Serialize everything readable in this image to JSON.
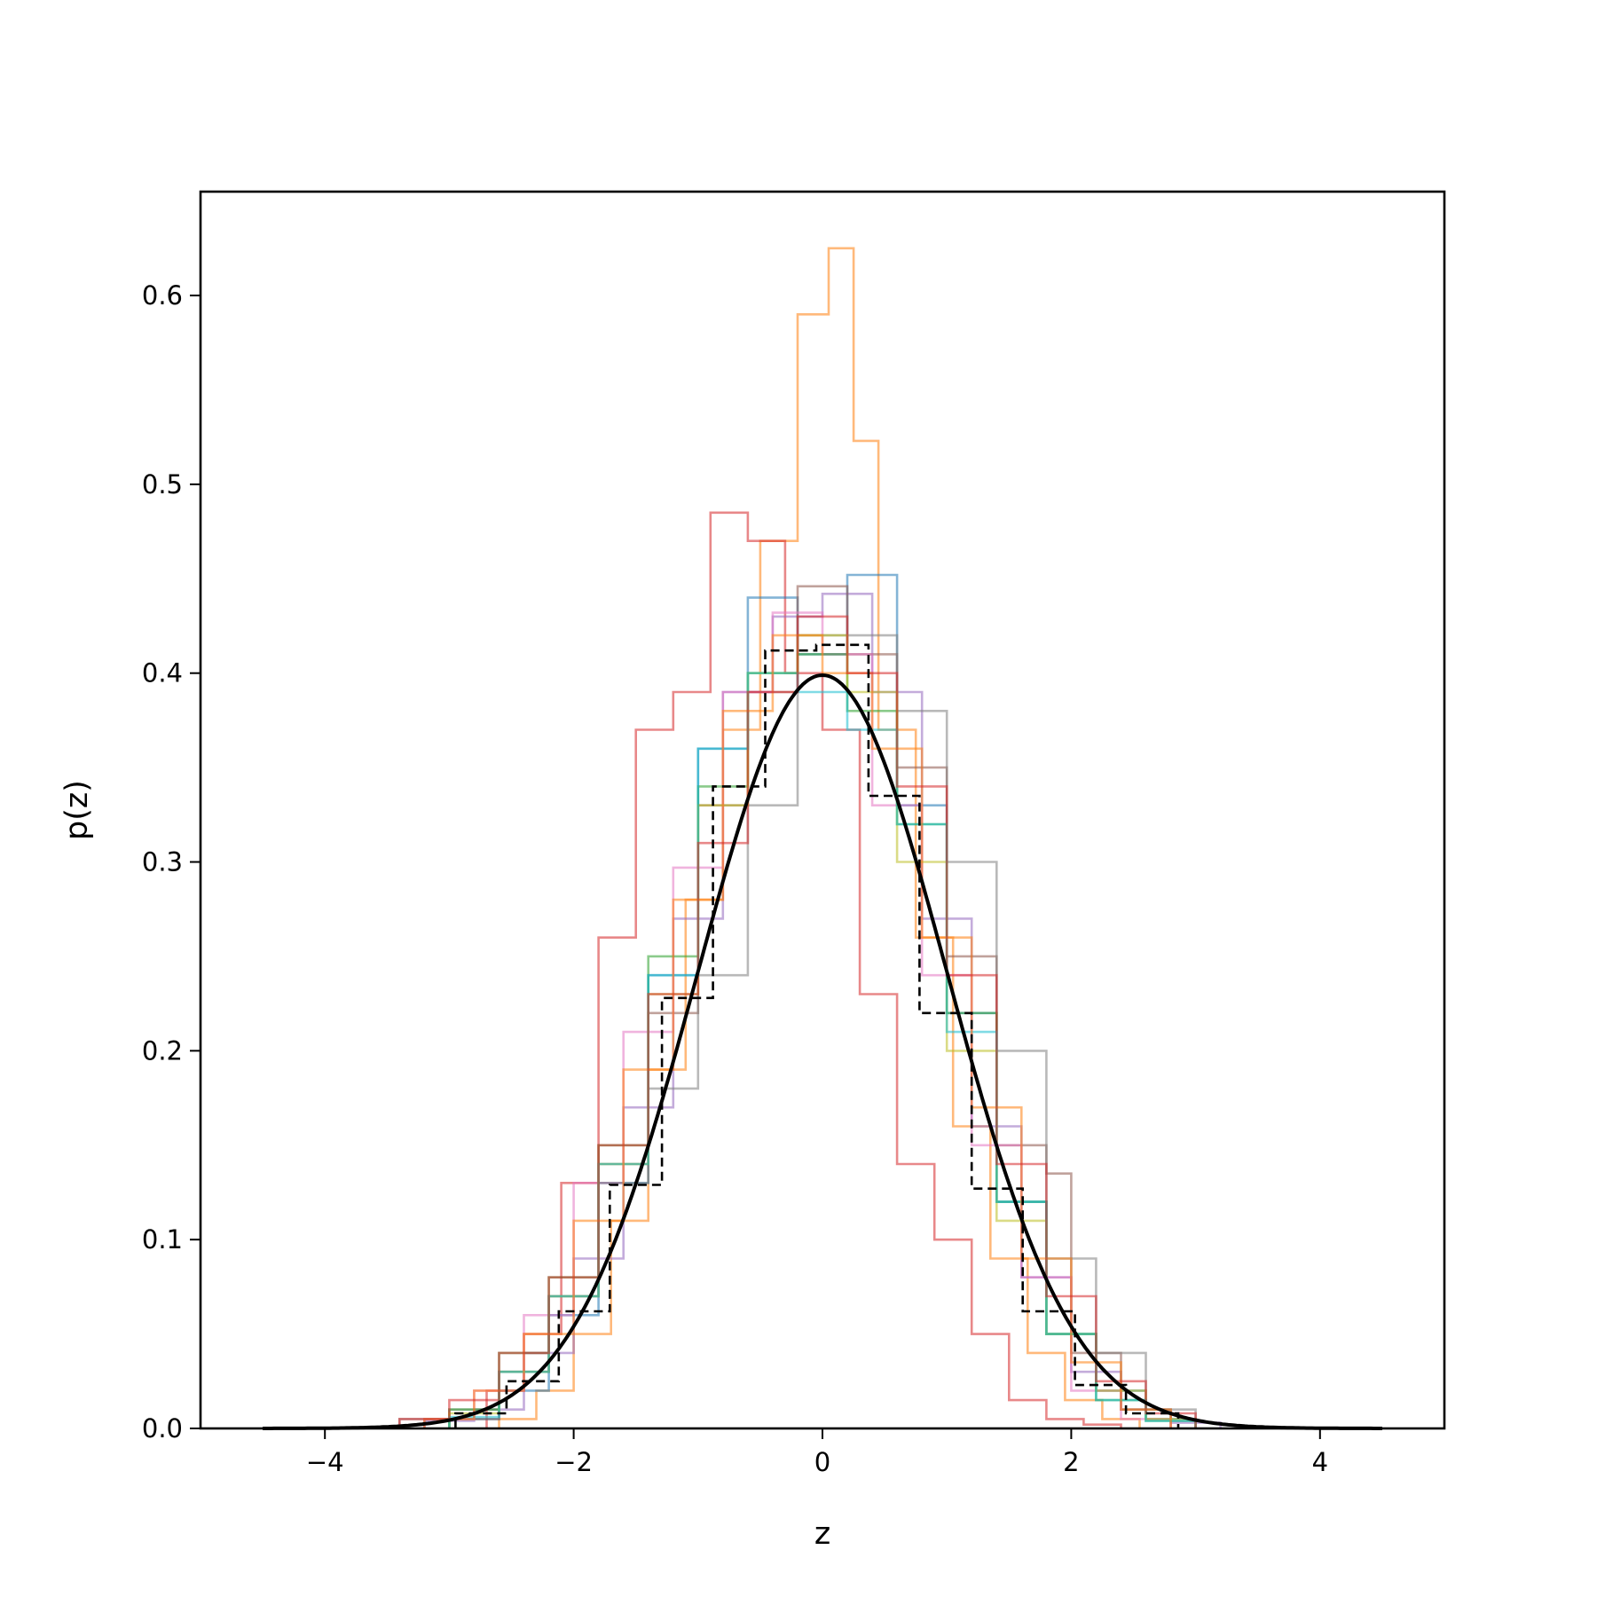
{
  "chart_data": {
    "type": "line",
    "title": "",
    "xlabel": "z",
    "ylabel": "p(z)",
    "xlim": [
      -5,
      5
    ],
    "ylim": [
      0,
      0.655
    ],
    "xticks": [
      -4,
      -2,
      0,
      2,
      4
    ],
    "xtick_labels": [
      "−4",
      "−2",
      "0",
      "2",
      "4"
    ],
    "yticks": [
      0.0,
      0.1,
      0.2,
      0.3,
      0.4,
      0.5,
      0.6
    ],
    "ytick_labels": [
      "0.0",
      "0.1",
      "0.2",
      "0.3",
      "0.4",
      "0.5",
      "0.6"
    ],
    "grid": false,
    "legend": "none",
    "reference_histogram": {
      "style": "dashed",
      "color": "#000000",
      "bin_edges": [
        -2.95,
        -2.54,
        -2.12,
        -1.71,
        -1.29,
        -0.88,
        -0.46,
        -0.05,
        0.37,
        0.78,
        1.2,
        1.61,
        2.03,
        2.44,
        2.86
      ],
      "values": [
        0.008,
        0.025,
        0.062,
        0.129,
        0.228,
        0.34,
        0.412,
        0.415,
        0.335,
        0.22,
        0.127,
        0.062,
        0.023,
        0.008
      ]
    },
    "gaussian_curve": {
      "color": "#000000",
      "mean": 0,
      "std": 1,
      "x_range": [
        -4.5,
        4.5
      ],
      "peak": 0.399
    },
    "histogram_series": [
      {
        "color": "#ff7f0e",
        "bin_edges": [
          -2.6,
          -2.3,
          -2.0,
          -1.7,
          -1.4,
          -1.1,
          -0.8,
          -0.5,
          -0.2,
          0.05,
          0.25,
          0.45,
          0.75,
          1.05,
          1.35,
          1.65,
          1.95,
          2.25,
          2.55
        ],
        "values": [
          0.005,
          0.02,
          0.05,
          0.11,
          0.19,
          0.28,
          0.37,
          0.47,
          0.59,
          0.625,
          0.523,
          0.37,
          0.26,
          0.16,
          0.09,
          0.04,
          0.015,
          0.005
        ]
      },
      {
        "color": "#d62728",
        "bin_edges": [
          -2.7,
          -2.4,
          -2.1,
          -1.8,
          -1.5,
          -1.2,
          -0.9,
          -0.6,
          -0.3,
          0.0,
          0.3,
          0.6,
          0.9,
          1.2,
          1.5,
          1.8,
          2.1,
          2.4
        ],
        "values": [
          0.02,
          0.05,
          0.13,
          0.26,
          0.37,
          0.39,
          0.485,
          0.47,
          0.4,
          0.37,
          0.23,
          0.14,
          0.1,
          0.05,
          0.015,
          0.005,
          0.002
        ]
      },
      {
        "color": "#1f77b4",
        "bin_edges": [
          -3.0,
          -2.6,
          -2.2,
          -1.8,
          -1.4,
          -1.0,
          -0.6,
          -0.2,
          0.2,
          0.6,
          1.0,
          1.4,
          1.8,
          2.2,
          2.6,
          3.0
        ],
        "values": [
          0.005,
          0.02,
          0.06,
          0.13,
          0.24,
          0.36,
          0.44,
          0.41,
          0.452,
          0.33,
          0.22,
          0.12,
          0.05,
          0.02,
          0.005
        ]
      },
      {
        "color": "#9467bd",
        "bin_edges": [
          -3.2,
          -2.8,
          -2.4,
          -2.0,
          -1.6,
          -1.2,
          -0.8,
          -0.4,
          0.0,
          0.4,
          0.8,
          1.2,
          1.6,
          2.0,
          2.4,
          2.8,
          3.2
        ],
        "values": [
          0.004,
          0.01,
          0.04,
          0.09,
          0.17,
          0.27,
          0.39,
          0.43,
          0.442,
          0.39,
          0.27,
          0.16,
          0.08,
          0.03,
          0.01,
          0.003
        ]
      },
      {
        "color": "#8c564b",
        "bin_edges": [
          -3.0,
          -2.6,
          -2.2,
          -1.8,
          -1.4,
          -1.0,
          -0.6,
          -0.2,
          0.2,
          0.6,
          1.0,
          1.4,
          1.8,
          2.0,
          2.4,
          2.8
        ],
        "values": [
          0.005,
          0.03,
          0.07,
          0.14,
          0.22,
          0.33,
          0.39,
          0.446,
          0.41,
          0.35,
          0.25,
          0.15,
          0.135,
          0.04,
          0.01
        ]
      },
      {
        "color": "#e377c2",
        "bin_edges": [
          -3.2,
          -2.8,
          -2.4,
          -2.0,
          -1.6,
          -1.2,
          -0.8,
          -0.4,
          0.0,
          0.4,
          0.8,
          1.2,
          1.6,
          2.0,
          2.4,
          2.8
        ],
        "values": [
          0.005,
          0.02,
          0.06,
          0.13,
          0.21,
          0.297,
          0.39,
          0.432,
          0.41,
          0.33,
          0.24,
          0.15,
          0.08,
          0.02,
          0.005
        ]
      },
      {
        "color": "#7f7f7f",
        "bin_edges": [
          -3.4,
          -3.0,
          -2.6,
          -2.2,
          -1.8,
          -1.4,
          -1.0,
          -0.6,
          -0.2,
          0.2,
          0.6,
          1.0,
          1.4,
          1.8,
          2.2,
          2.6,
          3.0
        ],
        "values": [
          0.005,
          0.01,
          0.03,
          0.07,
          0.13,
          0.18,
          0.24,
          0.33,
          0.42,
          0.42,
          0.38,
          0.3,
          0.2,
          0.09,
          0.04,
          0.01
        ]
      },
      {
        "color": "#2ca02c",
        "bin_edges": [
          -3.0,
          -2.6,
          -2.2,
          -1.8,
          -1.4,
          -1.0,
          -0.6,
          -0.2,
          0.2,
          0.6,
          1.0,
          1.4,
          1.8,
          2.2,
          2.6,
          3.0
        ],
        "values": [
          0.01,
          0.04,
          0.08,
          0.15,
          0.25,
          0.34,
          0.4,
          0.41,
          0.38,
          0.32,
          0.22,
          0.12,
          0.05,
          0.015,
          0.004
        ]
      },
      {
        "color": "#bcbd22",
        "bin_edges": [
          -3.0,
          -2.6,
          -2.2,
          -1.8,
          -1.4,
          -1.0,
          -0.6,
          -0.2,
          0.2,
          0.6,
          1.0,
          1.4,
          1.8,
          2.2,
          2.6,
          3.0
        ],
        "values": [
          0.008,
          0.03,
          0.07,
          0.14,
          0.23,
          0.33,
          0.4,
          0.42,
          0.39,
          0.3,
          0.2,
          0.11,
          0.05,
          0.02,
          0.005
        ]
      },
      {
        "color": "#17becf",
        "bin_edges": [
          -3.0,
          -2.6,
          -2.2,
          -1.8,
          -1.4,
          -1.0,
          -0.6,
          -0.2,
          0.2,
          0.6,
          1.0,
          1.4,
          1.8,
          2.2,
          2.6,
          3.0
        ],
        "values": [
          0.006,
          0.03,
          0.07,
          0.14,
          0.24,
          0.36,
          0.4,
          0.39,
          0.37,
          0.32,
          0.21,
          0.12,
          0.05,
          0.015,
          0.004
        ]
      },
      {
        "color": "#ff7f0e",
        "bin_edges": [
          -3.2,
          -2.8,
          -2.4,
          -2.0,
          -1.6,
          -1.2,
          -0.8,
          -0.4,
          0.0,
          0.4,
          0.8,
          1.2,
          1.6,
          2.0,
          2.4,
          2.8
        ],
        "values": [
          0.005,
          0.02,
          0.05,
          0.11,
          0.19,
          0.28,
          0.38,
          0.42,
          0.4,
          0.36,
          0.26,
          0.17,
          0.09,
          0.035,
          0.01
        ]
      },
      {
        "color": "#d62728",
        "bin_edges": [
          -3.4,
          -3.0,
          -2.6,
          -2.2,
          -1.8,
          -1.4,
          -1.0,
          -0.6,
          -0.2,
          0.2,
          0.6,
          1.0,
          1.4,
          1.8,
          2.2,
          2.6,
          3.0
        ],
        "values": [
          0.005,
          0.015,
          0.04,
          0.08,
          0.15,
          0.23,
          0.31,
          0.39,
          0.43,
          0.4,
          0.34,
          0.24,
          0.14,
          0.07,
          0.025,
          0.008
        ]
      }
    ]
  }
}
